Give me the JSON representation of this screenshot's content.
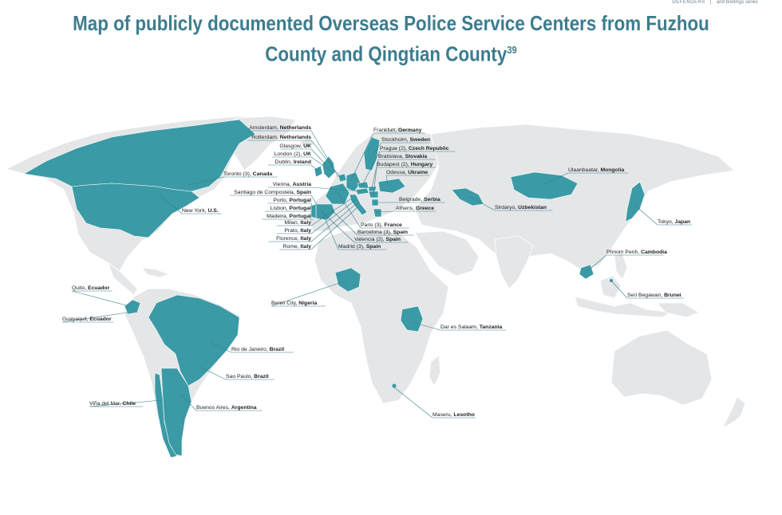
{
  "header": {
    "org": "DEFENDERS",
    "series": "and briefings series"
  },
  "title": {
    "line1": "Map of publicly documented Overseas Police Service Centers from Fuzhou",
    "line2": "County and Qingtian County",
    "footnote": "39"
  },
  "colors": {
    "highlight": "#3a9aa5",
    "land": "#e4e6e8",
    "border": "#ffffff",
    "leader": "#3f7f8d",
    "title": "#3d7c8e"
  },
  "labels": [
    {
      "city": "Amsterdam, ",
      "country": "Netherlands"
    },
    {
      "city": "Rotterdam, ",
      "country": "Netherlands"
    },
    {
      "city": "Glasgow, ",
      "country": "UK"
    },
    {
      "city": "London (2), ",
      "country": "UK"
    },
    {
      "city": "Dublin, ",
      "country": "Ireland"
    },
    {
      "city": "Toronto (3), ",
      "country": "Canada"
    },
    {
      "city": "Vienna, ",
      "country": "Austria"
    },
    {
      "city": "Santiago de Compostela, ",
      "country": "Spain"
    },
    {
      "city": "Porto, ",
      "country": "Portugal"
    },
    {
      "city": "Lisbon, ",
      "country": "Portugal"
    },
    {
      "city": "New York, ",
      "country": "U.S."
    },
    {
      "city": "Madeira, ",
      "country": "Portugal"
    },
    {
      "city": "Milan, ",
      "country": "Italy"
    },
    {
      "city": "Prato, ",
      "country": "Italy"
    },
    {
      "city": "Florence, ",
      "country": "Italy"
    },
    {
      "city": "Rome, ",
      "country": "Italy"
    },
    {
      "city": "Frankfurt, ",
      "country": "Germany"
    },
    {
      "city": "Stockholm, ",
      "country": "Sweden"
    },
    {
      "city": "Prague (2), ",
      "country": "Czech Republic"
    },
    {
      "city": "Bratislava, ",
      "country": "Slovakia"
    },
    {
      "city": "Budapest (2), ",
      "country": "Hungary"
    },
    {
      "city": "Odessa, ",
      "country": "Ukraine"
    },
    {
      "city": "Belgrade, ",
      "country": "Serbia"
    },
    {
      "city": "Athens, ",
      "country": "Greece"
    },
    {
      "city": "Paris (3), ",
      "country": "France"
    },
    {
      "city": "Barcelona (3), ",
      "country": "Spain"
    },
    {
      "city": "Valencia (2), ",
      "country": "Spain"
    },
    {
      "city": "Madrid (3), ",
      "country": "Spain"
    },
    {
      "city": "Ulaanbaatar, ",
      "country": "Mongolia"
    },
    {
      "city": "Sirdaryo, ",
      "country": "Uzbekistan"
    },
    {
      "city": "Tokyo, ",
      "country": "Japan"
    },
    {
      "city": "Phnom Penh, ",
      "country": "Cambodia"
    },
    {
      "city": "Seri Begawan, ",
      "country": "Brunei"
    },
    {
      "city": "Quito, ",
      "country": "Ecuador"
    },
    {
      "city": "Guayaquil, ",
      "country": "Ecuador"
    },
    {
      "city": "Benin City, ",
      "country": "Nigeria"
    },
    {
      "city": "Dar es Salaam, ",
      "country": "Tanzania"
    },
    {
      "city": "Rio de Janeiro, ",
      "country": "Brazil"
    },
    {
      "city": "Sao Paulo, ",
      "country": "Brazil"
    },
    {
      "city": "Viña del Mar, ",
      "country": "Chile"
    },
    {
      "city": "Buenos Aires, ",
      "country": "Argentina"
    },
    {
      "city": "Maseru, ",
      "country": "Lesotho"
    }
  ]
}
